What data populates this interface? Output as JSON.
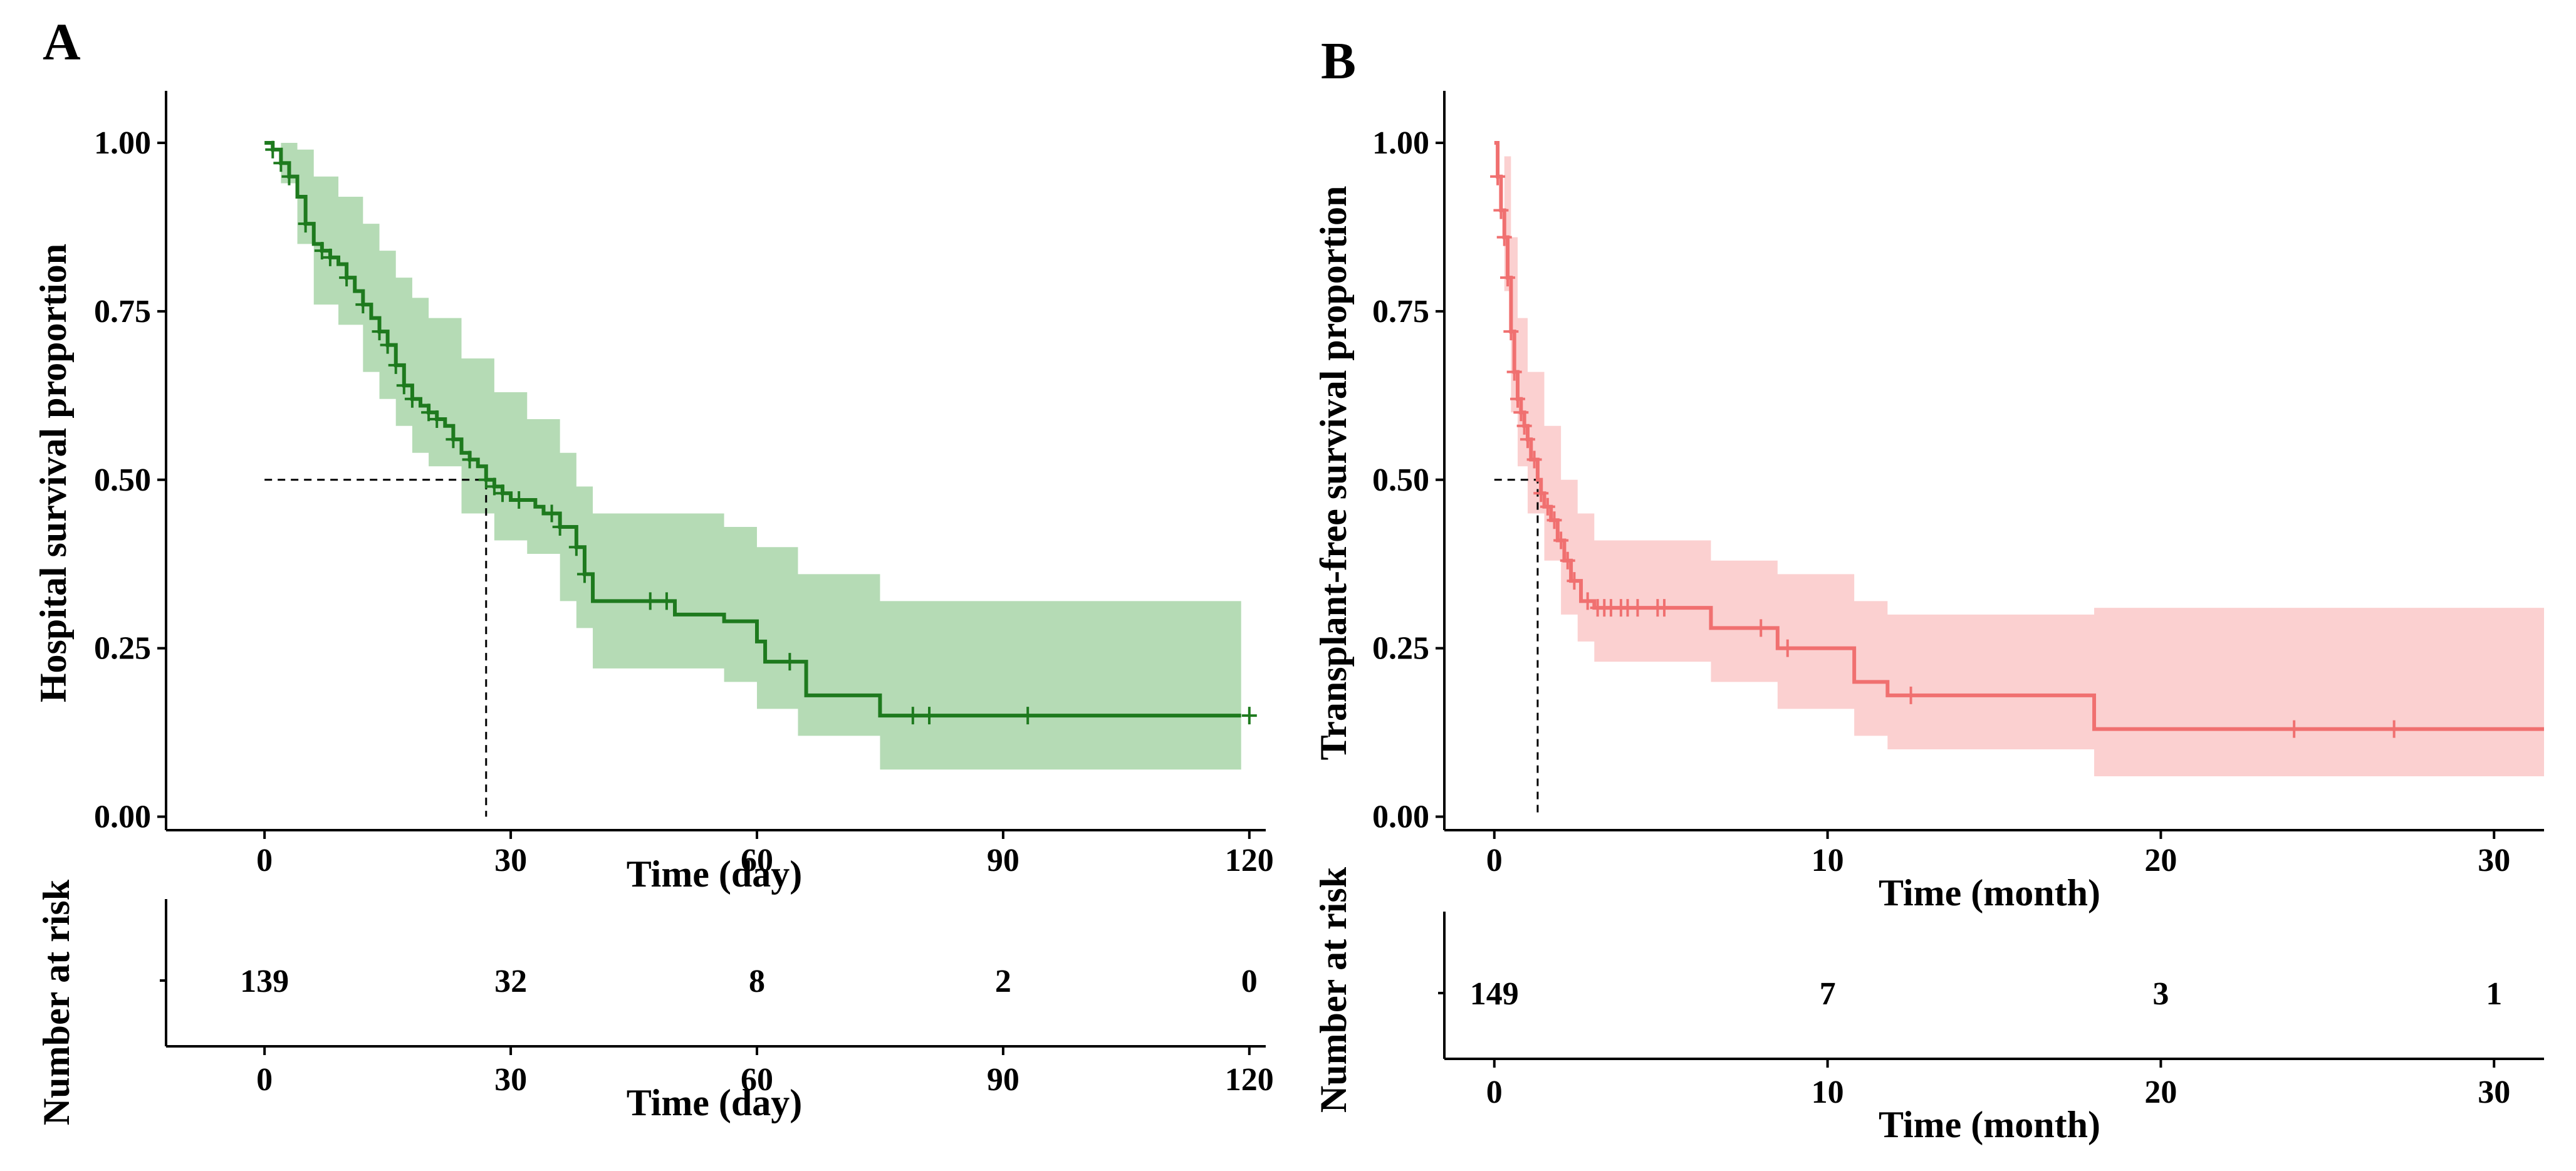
{
  "chart_data": [
    {
      "panel": "A",
      "type": "line",
      "subtype": "kaplan-meier",
      "color": "#1e7a1e",
      "band_color": "#b5dbb5",
      "ylabel": "Hospital survival proportion",
      "xlabel": "Time (day)",
      "xlim": [
        -12,
        122
      ],
      "ylim": [
        -0.02,
        1.04
      ],
      "xticks": [
        0,
        30,
        60,
        90,
        120
      ],
      "xtick_labels": [
        "0",
        "30",
        "60",
        "90",
        "120"
      ],
      "yticks": [
        0,
        0.25,
        0.5,
        0.75,
        1.0
      ],
      "ytick_labels": [
        "0.00",
        "0.25",
        "0.50",
        "0.75",
        "1.00"
      ],
      "median": 27,
      "survival_steps": [
        [
          0,
          1.0
        ],
        [
          1,
          0.99
        ],
        [
          2,
          0.97
        ],
        [
          3,
          0.95
        ],
        [
          4,
          0.92
        ],
        [
          5,
          0.88
        ],
        [
          6,
          0.85
        ],
        [
          7,
          0.84
        ],
        [
          8,
          0.83
        ],
        [
          9,
          0.82
        ],
        [
          10,
          0.8
        ],
        [
          11,
          0.78
        ],
        [
          12,
          0.76
        ],
        [
          13,
          0.74
        ],
        [
          14,
          0.72
        ],
        [
          15,
          0.7
        ],
        [
          16,
          0.67
        ],
        [
          17,
          0.64
        ],
        [
          18,
          0.62
        ],
        [
          19,
          0.61
        ],
        [
          20,
          0.6
        ],
        [
          21,
          0.59
        ],
        [
          22,
          0.58
        ],
        [
          23,
          0.56
        ],
        [
          24,
          0.54
        ],
        [
          25,
          0.53
        ],
        [
          26,
          0.52
        ],
        [
          27,
          0.5
        ],
        [
          28,
          0.49
        ],
        [
          29,
          0.48
        ],
        [
          30,
          0.47
        ],
        [
          33,
          0.46
        ],
        [
          34,
          0.45
        ],
        [
          36,
          0.43
        ],
        [
          38,
          0.4
        ],
        [
          39,
          0.36
        ],
        [
          40,
          0.32
        ],
        [
          50,
          0.3
        ],
        [
          56,
          0.29
        ],
        [
          60,
          0.26
        ],
        [
          61,
          0.23
        ],
        [
          66,
          0.18
        ],
        [
          75,
          0.15
        ],
        [
          119,
          0.15
        ]
      ],
      "upper_band": [
        [
          0,
          1.0
        ],
        [
          2,
          1.0
        ],
        [
          4,
          0.99
        ],
        [
          6,
          0.95
        ],
        [
          9,
          0.92
        ],
        [
          12,
          0.88
        ],
        [
          14,
          0.84
        ],
        [
          16,
          0.8
        ],
        [
          18,
          0.77
        ],
        [
          20,
          0.74
        ],
        [
          24,
          0.68
        ],
        [
          28,
          0.63
        ],
        [
          32,
          0.59
        ],
        [
          36,
          0.54
        ],
        [
          38,
          0.49
        ],
        [
          40,
          0.45
        ],
        [
          56,
          0.43
        ],
        [
          60,
          0.4
        ],
        [
          65,
          0.36
        ],
        [
          75,
          0.32
        ],
        [
          119,
          0.32
        ]
      ],
      "lower_band": [
        [
          0,
          1.0
        ],
        [
          2,
          0.94
        ],
        [
          4,
          0.85
        ],
        [
          6,
          0.76
        ],
        [
          9,
          0.73
        ],
        [
          12,
          0.66
        ],
        [
          14,
          0.62
        ],
        [
          16,
          0.58
        ],
        [
          18,
          0.54
        ],
        [
          20,
          0.52
        ],
        [
          24,
          0.45
        ],
        [
          28,
          0.41
        ],
        [
          32,
          0.39
        ],
        [
          36,
          0.32
        ],
        [
          38,
          0.28
        ],
        [
          40,
          0.22
        ],
        [
          56,
          0.2
        ],
        [
          60,
          0.16
        ],
        [
          65,
          0.12
        ],
        [
          75,
          0.07
        ],
        [
          119,
          0.07
        ]
      ],
      "censored_times": [
        1,
        2,
        3,
        5,
        7,
        8,
        10,
        12,
        14,
        15,
        16,
        17,
        18,
        20,
        21,
        23,
        25,
        27,
        28,
        29,
        31,
        35,
        36,
        38,
        39,
        47,
        49,
        64,
        79,
        81,
        93,
        120
      ],
      "risk_label": "Number at risk",
      "risk_times": [
        0,
        30,
        60,
        90,
        120
      ],
      "risk_values": [
        "139",
        "32",
        "8",
        "2",
        "0"
      ],
      "risk_xlabel": "Time (day)"
    },
    {
      "panel": "B",
      "type": "line",
      "subtype": "kaplan-meier",
      "color": "#f07070",
      "band_color": "#fbd0d0",
      "ylabel": "Transplant-free survival proportion",
      "xlabel": "Time (month)",
      "xlim": [
        -1.5,
        31.5
      ],
      "ylim": [
        -0.02,
        1.04
      ],
      "xticks": [
        0,
        10,
        20,
        30
      ],
      "xtick_labels": [
        "0",
        "10",
        "20",
        "30"
      ],
      "yticks": [
        0,
        0.25,
        0.5,
        0.75,
        1.0
      ],
      "ytick_labels": [
        "0.00",
        "0.25",
        "0.50",
        "0.75",
        "1.00"
      ],
      "median": 1.3,
      "survival_steps": [
        [
          0,
          1.0
        ],
        [
          0.1,
          0.95
        ],
        [
          0.2,
          0.9
        ],
        [
          0.3,
          0.86
        ],
        [
          0.4,
          0.8
        ],
        [
          0.5,
          0.72
        ],
        [
          0.6,
          0.66
        ],
        [
          0.7,
          0.62
        ],
        [
          0.8,
          0.6
        ],
        [
          0.9,
          0.58
        ],
        [
          1.0,
          0.56
        ],
        [
          1.1,
          0.53
        ],
        [
          1.3,
          0.5
        ],
        [
          1.4,
          0.48
        ],
        [
          1.5,
          0.46
        ],
        [
          1.7,
          0.44
        ],
        [
          1.9,
          0.41
        ],
        [
          2.1,
          0.38
        ],
        [
          2.3,
          0.35
        ],
        [
          2.6,
          0.32
        ],
        [
          3.0,
          0.31
        ],
        [
          6.5,
          0.28
        ],
        [
          8.5,
          0.25
        ],
        [
          10.8,
          0.2
        ],
        [
          11.8,
          0.18
        ],
        [
          18,
          0.13
        ],
        [
          31.5,
          0.13
        ]
      ],
      "upper_band": [
        [
          0,
          1.0
        ],
        [
          0.3,
          0.98
        ],
        [
          0.5,
          0.86
        ],
        [
          0.7,
          0.74
        ],
        [
          1.0,
          0.66
        ],
        [
          1.5,
          0.58
        ],
        [
          2.0,
          0.5
        ],
        [
          2.5,
          0.45
        ],
        [
          3.0,
          0.41
        ],
        [
          6.5,
          0.38
        ],
        [
          8.5,
          0.36
        ],
        [
          10.8,
          0.32
        ],
        [
          11.8,
          0.3
        ],
        [
          18,
          0.31
        ],
        [
          31.5,
          0.31
        ]
      ],
      "lower_band": [
        [
          0,
          1.0
        ],
        [
          0.3,
          0.78
        ],
        [
          0.5,
          0.6
        ],
        [
          0.7,
          0.52
        ],
        [
          1.0,
          0.45
        ],
        [
          1.5,
          0.38
        ],
        [
          2.0,
          0.3
        ],
        [
          2.5,
          0.26
        ],
        [
          3.0,
          0.23
        ],
        [
          6.5,
          0.2
        ],
        [
          8.5,
          0.16
        ],
        [
          10.8,
          0.12
        ],
        [
          11.8,
          0.1
        ],
        [
          18,
          0.06
        ],
        [
          31.5,
          0.06
        ]
      ],
      "censored_times": [
        0.1,
        0.2,
        0.3,
        0.4,
        0.5,
        0.6,
        0.7,
        0.8,
        0.9,
        1.0,
        1.2,
        1.4,
        1.6,
        1.8,
        2.0,
        2.2,
        2.4,
        2.8,
        3.1,
        3.3,
        3.5,
        3.8,
        4.0,
        4.3,
        4.9,
        5.1,
        8.0,
        8.8,
        12.5,
        24.0,
        27.0
      ],
      "risk_label": "Number at risk",
      "risk_times": [
        0,
        10,
        20,
        30
      ],
      "risk_values": [
        "149",
        "7",
        "3",
        "1"
      ],
      "risk_xlabel": "Time (month)"
    }
  ]
}
